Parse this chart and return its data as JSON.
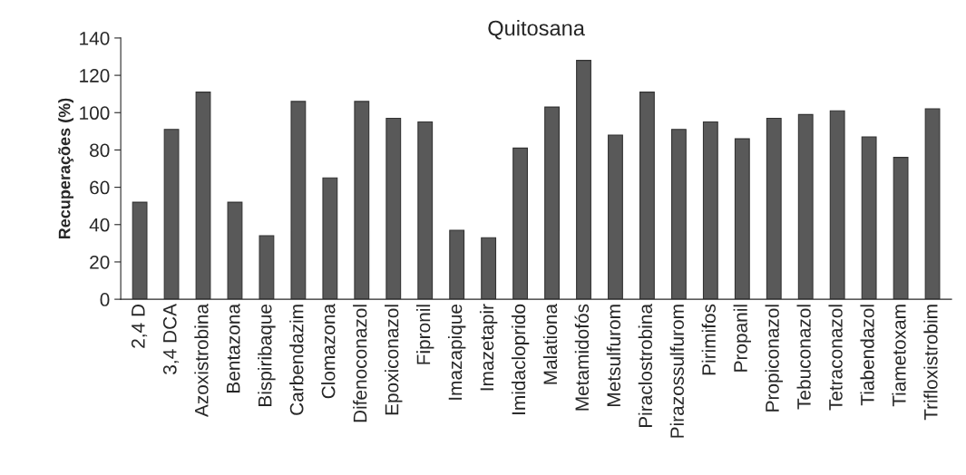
{
  "chart_data": {
    "type": "bar",
    "title": "Quitosana",
    "ylabel": "Recuperações (%)",
    "categories": [
      "2,4 D",
      "3,4 DCA",
      "Azoxistrobina",
      "Bentazona",
      "Bispiribaque",
      "Carbendazim",
      "Clomazona",
      "Difenoconazol",
      "Epoxiconazol",
      "Fipronil",
      "Imazapique",
      "Imazetapir",
      "Imidacloprido",
      "Malationa",
      "Metamidofós",
      "Metsulfurom",
      "Piraclostrobina",
      "Pirazossulfurom",
      "Pirimifos",
      "Propanil",
      "Propiconazol",
      "Tebuconazol",
      "Tetraconazol",
      "Tiabendazol",
      "Tiametoxam",
      "Trifloxistrobim"
    ],
    "values": [
      52,
      91,
      111,
      52,
      34,
      106,
      65,
      106,
      97,
      95,
      37,
      33,
      81,
      103,
      128,
      88,
      111,
      91,
      95,
      86,
      97,
      99,
      101,
      87,
      76,
      102
    ],
    "color": "#595959",
    "ylim": [
      0,
      140
    ],
    "yticks": [
      0,
      20,
      40,
      60,
      80,
      100,
      120,
      140
    ],
    "grid": false,
    "legend": false
  }
}
